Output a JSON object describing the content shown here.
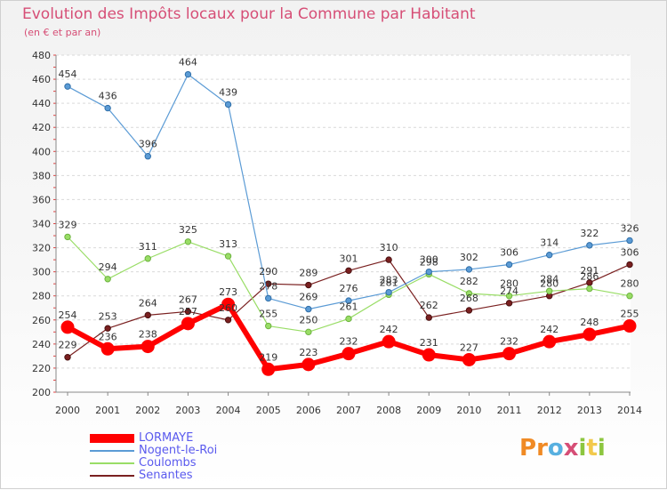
{
  "header": {
    "title": "Evolution des Impôts locaux pour la Commune par Habitant",
    "subtitle": "(en € et par an)"
  },
  "chart_data": {
    "type": "line",
    "categories": [
      "2000",
      "2001",
      "2002",
      "2003",
      "2004",
      "2005",
      "2006",
      "2007",
      "2008",
      "2009",
      "2010",
      "2011",
      "2012",
      "2013",
      "2014"
    ],
    "ylim": [
      200,
      480
    ],
    "ytick_step": 20,
    "grid": "horizontal dashed",
    "legend_position": "bottom-left",
    "series": [
      {
        "name": "LORMAYE",
        "color": "#ff0000",
        "values": [
          254,
          236,
          238,
          257,
          273,
          219,
          223,
          232,
          242,
          231,
          227,
          232,
          242,
          248,
          255
        ]
      },
      {
        "name": "Nogent-le-Roi",
        "color": "#5b9bd5",
        "values": [
          454,
          436,
          396,
          464,
          439,
          278,
          269,
          276,
          283,
          300,
          302,
          306,
          314,
          322,
          326
        ]
      },
      {
        "name": "Coulombs",
        "color": "#99dd66",
        "values": [
          329,
          294,
          311,
          325,
          313,
          255,
          250,
          261,
          281,
          298,
          282,
          280,
          284,
          286,
          280
        ]
      },
      {
        "name": "Senantes",
        "color": "#7a2020",
        "values": [
          229,
          253,
          264,
          267,
          260,
          290,
          289,
          301,
          310,
          262,
          268,
          274,
          280,
          291,
          306
        ]
      }
    ],
    "data_labels": [
      [
        "254",
        "236",
        "238",
        "257",
        "273",
        "219",
        "223",
        "232",
        "242",
        "231",
        "227",
        "232",
        "242",
        "248",
        "255"
      ],
      [
        "454",
        "436",
        "396",
        "464",
        "439",
        "278",
        "269",
        "276",
        "283",
        "300",
        "302",
        "306",
        "314",
        "322",
        "326"
      ],
      [
        "329",
        "294",
        "311",
        "325",
        "313",
        "255",
        "250",
        "261",
        "281",
        "298",
        "282",
        "280",
        "284",
        "286",
        "280"
      ],
      [
        "229",
        "253",
        "264",
        "267",
        "260",
        "290",
        "289",
        "301",
        "310",
        "262",
        "268",
        "274",
        "280",
        "291",
        "306"
      ]
    ]
  },
  "logo": {
    "letters": [
      "P",
      "r",
      "o",
      "x",
      "i",
      "t",
      "i"
    ],
    "colors": [
      "#f08a24",
      "#f08a24",
      "#58b0e0",
      "#d64e76",
      "#8cc63f",
      "#f2c94c",
      "#8cc63f"
    ]
  }
}
